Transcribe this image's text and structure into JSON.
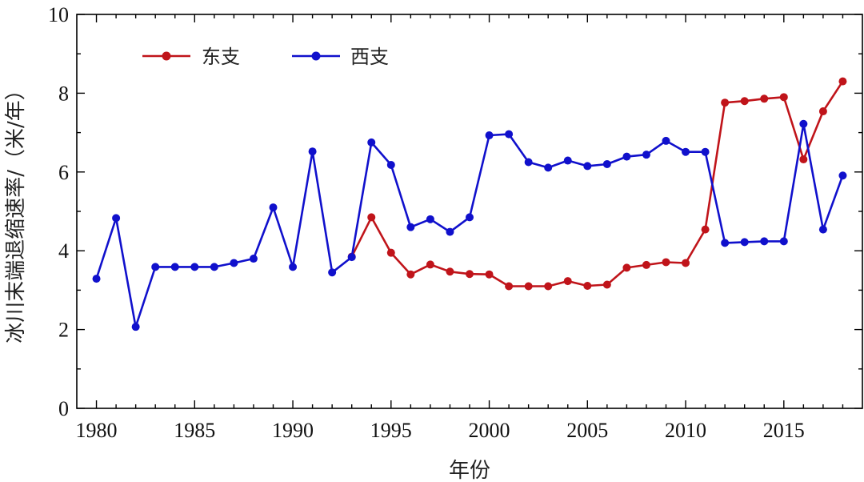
{
  "chart_data": {
    "type": "line",
    "xlabel": "年份",
    "ylabel": "冰川末端退缩速率/（米/年）",
    "xlim": [
      1979,
      2019
    ],
    "ylim": [
      0,
      10
    ],
    "x_ticks": [
      "1980",
      "1985",
      "1990",
      "1995",
      "2000",
      "2005",
      "2010",
      "2015"
    ],
    "y_ticks": [
      "0",
      "2",
      "4",
      "6",
      "8",
      "10"
    ],
    "legend_position": "top-left",
    "series": [
      {
        "name": "东支",
        "color": "#c0141a",
        "x": [
          1993,
          1994,
          1995,
          1996,
          1997,
          1998,
          1999,
          2000,
          2001,
          2002,
          2003,
          2004,
          2005,
          2006,
          2007,
          2008,
          2009,
          2010,
          2011,
          2012,
          2013,
          2014,
          2015,
          2016,
          2017,
          2018
        ],
        "y": [
          3.85,
          4.85,
          3.95,
          3.4,
          3.65,
          3.47,
          3.41,
          3.4,
          3.1,
          3.1,
          3.1,
          3.23,
          3.11,
          3.14,
          3.57,
          3.64,
          3.71,
          3.69,
          4.54,
          7.76,
          7.8,
          7.86,
          7.9,
          6.32,
          7.54,
          8.3
        ]
      },
      {
        "name": "西支",
        "color": "#1010cc",
        "x": [
          1980,
          1981,
          1982,
          1983,
          1984,
          1985,
          1986,
          1987,
          1988,
          1989,
          1990,
          1991,
          1992,
          1993,
          1994,
          1995,
          1996,
          1997,
          1998,
          1999,
          2000,
          2001,
          2002,
          2003,
          2004,
          2005,
          2006,
          2007,
          2008,
          2009,
          2010,
          2011,
          2012,
          2013,
          2014,
          2015,
          2016,
          2017,
          2018
        ],
        "y": [
          3.29,
          4.83,
          2.07,
          3.59,
          3.59,
          3.59,
          3.59,
          3.69,
          3.8,
          5.1,
          3.59,
          6.52,
          3.45,
          3.84,
          6.75,
          6.18,
          4.6,
          4.8,
          4.48,
          4.85,
          6.93,
          6.96,
          6.25,
          6.11,
          6.29,
          6.15,
          6.2,
          6.39,
          6.44,
          6.79,
          6.51,
          6.51,
          4.2,
          4.22,
          4.24,
          4.24,
          7.22,
          4.54,
          5.91
        ]
      }
    ]
  }
}
